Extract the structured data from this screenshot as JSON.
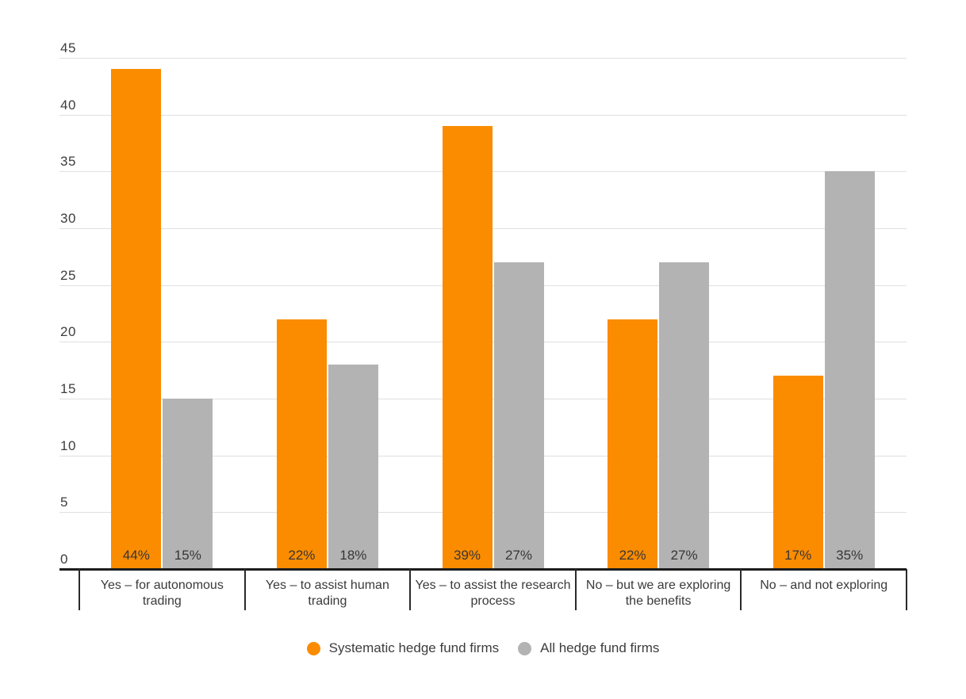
{
  "chart_data": {
    "type": "bar",
    "title": "",
    "xlabel": "",
    "ylabel": "",
    "grid": true,
    "legend_position": "bottom",
    "ylim": [
      0,
      45
    ],
    "ytick_step": 5,
    "yticks": [
      0,
      5,
      10,
      15,
      20,
      25,
      30,
      35,
      40,
      45
    ],
    "categories": [
      "Yes – for autonomous trading",
      "Yes – to assist human trading",
      "Yes – to assist the research process",
      "No – but we are exploring the benefits",
      "No – and not exploring"
    ],
    "series": [
      {
        "name": "Systematic hedge fund firms",
        "color": "#FB8C00",
        "values": [
          44,
          22,
          39,
          22,
          17
        ],
        "value_labels": [
          "44%",
          "22%",
          "39%",
          "22%",
          "17%"
        ]
      },
      {
        "name": "All hedge fund firms",
        "color": "#B3B3B3",
        "values": [
          15,
          18,
          27,
          27,
          35
        ],
        "value_labels": [
          "15%",
          "18%",
          "27%",
          "27%",
          "35%"
        ]
      }
    ]
  },
  "style_colors": {
    "gridline": "#e0e0e0",
    "axis": "#1c1c1c",
    "text": "#3d3d3d",
    "background": "#ffffff"
  }
}
